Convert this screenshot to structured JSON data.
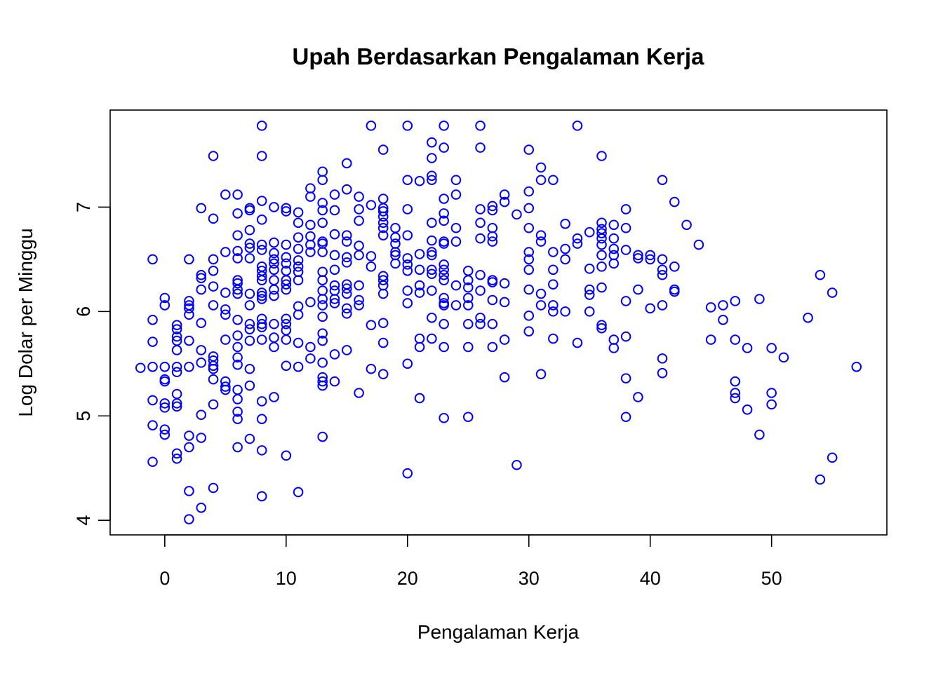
{
  "chart_data": {
    "type": "scatter",
    "title": "Upah Berdasarkan Pengalaman Kerja",
    "xlabel": "Pengalaman Kerja",
    "ylabel": "Log Dolar per Minggu",
    "xlim": [
      -4.5,
      59.5
    ],
    "ylim": [
      3.86,
      7.93
    ],
    "x_ticks": [
      0,
      10,
      20,
      30,
      40,
      50
    ],
    "y_ticks": [
      4,
      5,
      6,
      7
    ],
    "grid": false,
    "marker": "open-circle",
    "point_color": "#0000ff",
    "points": [
      [
        -2,
        5.46
      ],
      [
        -1,
        6.5
      ],
      [
        -1,
        5.92
      ],
      [
        -1,
        5.71
      ],
      [
        -1,
        5.47
      ],
      [
        -1,
        5.15
      ],
      [
        -1,
        4.91
      ],
      [
        -1,
        4.56
      ],
      [
        0,
        6.13
      ],
      [
        0,
        6.06
      ],
      [
        0,
        5.47
      ],
      [
        0,
        5.35
      ],
      [
        0,
        5.33
      ],
      [
        0,
        5.12
      ],
      [
        0,
        5.08
      ],
      [
        0,
        4.87
      ],
      [
        0,
        4.82
      ],
      [
        1,
        5.87
      ],
      [
        1,
        5.83
      ],
      [
        1,
        5.76
      ],
      [
        1,
        5.72
      ],
      [
        1,
        5.63
      ],
      [
        1,
        5.47
      ],
      [
        1,
        5.42
      ],
      [
        1,
        5.21
      ],
      [
        1,
        5.12
      ],
      [
        1,
        5.09
      ],
      [
        1,
        4.64
      ],
      [
        1,
        4.59
      ],
      [
        2,
        6.5
      ],
      [
        2,
        6.1
      ],
      [
        2,
        6.06
      ],
      [
        2,
        6.03
      ],
      [
        2,
        5.97
      ],
      [
        2,
        5.72
      ],
      [
        2,
        5.47
      ],
      [
        2,
        4.81
      ],
      [
        2,
        4.7
      ],
      [
        2,
        4.28
      ],
      [
        2,
        4.01
      ],
      [
        3,
        6.99
      ],
      [
        3,
        6.35
      ],
      [
        3,
        6.32
      ],
      [
        3,
        6.21
      ],
      [
        3,
        5.89
      ],
      [
        3,
        5.63
      ],
      [
        3,
        5.51
      ],
      [
        3,
        5.01
      ],
      [
        3,
        4.79
      ],
      [
        3,
        4.12
      ],
      [
        4,
        7.49
      ],
      [
        4,
        6.89
      ],
      [
        4,
        6.5
      ],
      [
        4,
        6.39
      ],
      [
        4,
        6.24
      ],
      [
        4,
        6.06
      ],
      [
        4,
        5.57
      ],
      [
        4,
        5.53
      ],
      [
        4,
        5.48
      ],
      [
        4,
        5.45
      ],
      [
        4,
        5.35
      ],
      [
        4,
        5.11
      ],
      [
        4,
        4.31
      ],
      [
        5,
        7.12
      ],
      [
        5,
        6.57
      ],
      [
        5,
        6.18
      ],
      [
        5,
        6.02
      ],
      [
        5,
        5.97
      ],
      [
        5,
        5.73
      ],
      [
        5,
        5.33
      ],
      [
        5,
        5.28
      ],
      [
        5,
        5.25
      ],
      [
        6,
        7.12
      ],
      [
        6,
        6.94
      ],
      [
        6,
        6.73
      ],
      [
        6,
        6.58
      ],
      [
        6,
        6.51
      ],
      [
        6,
        6.3
      ],
      [
        6,
        6.27
      ],
      [
        6,
        6.21
      ],
      [
        6,
        6.17
      ],
      [
        6,
        5.92
      ],
      [
        6,
        5.77
      ],
      [
        6,
        5.66
      ],
      [
        6,
        5.56
      ],
      [
        6,
        5.49
      ],
      [
        6,
        5.25
      ],
      [
        6,
        5.16
      ],
      [
        6,
        5.04
      ],
      [
        6,
        4.97
      ],
      [
        6,
        4.7
      ],
      [
        7,
        6.99
      ],
      [
        7,
        6.97
      ],
      [
        7,
        6.78
      ],
      [
        7,
        6.65
      ],
      [
        7,
        6.61
      ],
      [
        7,
        6.51
      ],
      [
        7,
        6.17
      ],
      [
        7,
        6.06
      ],
      [
        7,
        5.88
      ],
      [
        7,
        5.83
      ],
      [
        7,
        5.72
      ],
      [
        7,
        5.45
      ],
      [
        7,
        5.29
      ],
      [
        7,
        4.78
      ],
      [
        8,
        7.78
      ],
      [
        8,
        7.49
      ],
      [
        8,
        7.06
      ],
      [
        8,
        6.88
      ],
      [
        8,
        6.64
      ],
      [
        8,
        6.59
      ],
      [
        8,
        6.43
      ],
      [
        8,
        6.39
      ],
      [
        8,
        6.34
      ],
      [
        8,
        6.3
      ],
      [
        8,
        6.18
      ],
      [
        8,
        6.15
      ],
      [
        8,
        6.12
      ],
      [
        8,
        5.93
      ],
      [
        8,
        5.88
      ],
      [
        8,
        5.85
      ],
      [
        8,
        5.73
      ],
      [
        8,
        5.14
      ],
      [
        8,
        4.97
      ],
      [
        8,
        4.67
      ],
      [
        8,
        4.23
      ],
      [
        9,
        7.0
      ],
      [
        9,
        6.66
      ],
      [
        9,
        6.56
      ],
      [
        9,
        6.5
      ],
      [
        9,
        6.46
      ],
      [
        9,
        6.4
      ],
      [
        9,
        6.3
      ],
      [
        9,
        6.21
      ],
      [
        9,
        6.15
      ],
      [
        9,
        5.88
      ],
      [
        9,
        5.75
      ],
      [
        9,
        5.66
      ],
      [
        9,
        5.18
      ],
      [
        10,
        6.99
      ],
      [
        10,
        6.96
      ],
      [
        10,
        6.64
      ],
      [
        10,
        6.52
      ],
      [
        10,
        6.46
      ],
      [
        10,
        6.39
      ],
      [
        10,
        6.3
      ],
      [
        10,
        6.26
      ],
      [
        10,
        6.21
      ],
      [
        10,
        5.93
      ],
      [
        10,
        5.88
      ],
      [
        10,
        5.82
      ],
      [
        10,
        5.73
      ],
      [
        10,
        5.48
      ],
      [
        10,
        4.62
      ],
      [
        11,
        6.95
      ],
      [
        11,
        6.85
      ],
      [
        11,
        6.71
      ],
      [
        11,
        6.6
      ],
      [
        11,
        6.49
      ],
      [
        11,
        6.43
      ],
      [
        11,
        6.38
      ],
      [
        11,
        6.3
      ],
      [
        11,
        6.05
      ],
      [
        11,
        5.97
      ],
      [
        11,
        5.7
      ],
      [
        11,
        5.47
      ],
      [
        11,
        4.27
      ],
      [
        12,
        7.18
      ],
      [
        12,
        7.1
      ],
      [
        12,
        6.83
      ],
      [
        12,
        6.72
      ],
      [
        12,
        6.64
      ],
      [
        12,
        6.57
      ],
      [
        12,
        6.09
      ],
      [
        12,
        5.66
      ],
      [
        12,
        5.55
      ],
      [
        13,
        7.34
      ],
      [
        13,
        7.26
      ],
      [
        13,
        7.04
      ],
      [
        13,
        6.97
      ],
      [
        13,
        6.85
      ],
      [
        13,
        6.67
      ],
      [
        13,
        6.65
      ],
      [
        13,
        6.57
      ],
      [
        13,
        6.38
      ],
      [
        13,
        6.3
      ],
      [
        13,
        6.2
      ],
      [
        13,
        6.12
      ],
      [
        13,
        6.06
      ],
      [
        13,
        5.95
      ],
      [
        13,
        5.79
      ],
      [
        13,
        5.72
      ],
      [
        13,
        5.51
      ],
      [
        13,
        5.37
      ],
      [
        13,
        5.33
      ],
      [
        13,
        5.29
      ],
      [
        13,
        4.8
      ],
      [
        14,
        7.12
      ],
      [
        14,
        6.97
      ],
      [
        14,
        6.74
      ],
      [
        14,
        6.54
      ],
      [
        14,
        6.4
      ],
      [
        14,
        6.25
      ],
      [
        14,
        6.2
      ],
      [
        14,
        6.12
      ],
      [
        14,
        6.08
      ],
      [
        14,
        5.59
      ],
      [
        14,
        5.33
      ],
      [
        15,
        7.42
      ],
      [
        15,
        7.17
      ],
      [
        15,
        6.73
      ],
      [
        15,
        6.67
      ],
      [
        15,
        6.52
      ],
      [
        15,
        6.47
      ],
      [
        15,
        6.26
      ],
      [
        15,
        6.22
      ],
      [
        15,
        6.17
      ],
      [
        15,
        6.03
      ],
      [
        15,
        5.98
      ],
      [
        15,
        5.63
      ],
      [
        16,
        7.1
      ],
      [
        16,
        6.98
      ],
      [
        16,
        6.87
      ],
      [
        16,
        6.63
      ],
      [
        16,
        6.54
      ],
      [
        16,
        6.25
      ],
      [
        16,
        6.11
      ],
      [
        16,
        6.06
      ],
      [
        16,
        5.22
      ],
      [
        17,
        7.78
      ],
      [
        17,
        7.02
      ],
      [
        17,
        6.53
      ],
      [
        17,
        6.43
      ],
      [
        17,
        5.87
      ],
      [
        17,
        5.45
      ],
      [
        18,
        7.55
      ],
      [
        18,
        7.08
      ],
      [
        18,
        6.99
      ],
      [
        18,
        6.96
      ],
      [
        18,
        6.91
      ],
      [
        18,
        6.85
      ],
      [
        18,
        6.8
      ],
      [
        18,
        6.73
      ],
      [
        18,
        6.34
      ],
      [
        18,
        6.3
      ],
      [
        18,
        6.25
      ],
      [
        18,
        6.17
      ],
      [
        18,
        5.89
      ],
      [
        18,
        5.7
      ],
      [
        18,
        5.4
      ],
      [
        19,
        6.8
      ],
      [
        19,
        6.71
      ],
      [
        19,
        6.65
      ],
      [
        19,
        6.57
      ],
      [
        19,
        6.54
      ],
      [
        19,
        6.46
      ],
      [
        20,
        7.78
      ],
      [
        20,
        7.26
      ],
      [
        20,
        6.98
      ],
      [
        20,
        6.73
      ],
      [
        20,
        6.51
      ],
      [
        20,
        6.45
      ],
      [
        20,
        6.39
      ],
      [
        20,
        6.2
      ],
      [
        20,
        6.08
      ],
      [
        20,
        5.5
      ],
      [
        20,
        4.45
      ],
      [
        21,
        7.25
      ],
      [
        21,
        6.55
      ],
      [
        21,
        6.4
      ],
      [
        21,
        6.25
      ],
      [
        21,
        6.18
      ],
      [
        21,
        5.74
      ],
      [
        21,
        5.66
      ],
      [
        21,
        5.17
      ],
      [
        22,
        7.62
      ],
      [
        22,
        7.47
      ],
      [
        22,
        7.3
      ],
      [
        22,
        7.26
      ],
      [
        22,
        6.85
      ],
      [
        22,
        6.68
      ],
      [
        22,
        6.57
      ],
      [
        22,
        6.54
      ],
      [
        22,
        6.4
      ],
      [
        22,
        6.36
      ],
      [
        22,
        6.2
      ],
      [
        22,
        5.94
      ],
      [
        22,
        5.74
      ],
      [
        23,
        7.78
      ],
      [
        23,
        7.57
      ],
      [
        23,
        7.08
      ],
      [
        23,
        6.94
      ],
      [
        23,
        6.87
      ],
      [
        23,
        6.67
      ],
      [
        23,
        6.65
      ],
      [
        23,
        6.45
      ],
      [
        23,
        6.4
      ],
      [
        23,
        6.35
      ],
      [
        23,
        6.3
      ],
      [
        23,
        6.13
      ],
      [
        23,
        6.08
      ],
      [
        23,
        6.06
      ],
      [
        23,
        5.88
      ],
      [
        23,
        5.66
      ],
      [
        23,
        4.98
      ],
      [
        24,
        7.26
      ],
      [
        24,
        7.12
      ],
      [
        24,
        6.8
      ],
      [
        24,
        6.67
      ],
      [
        24,
        6.25
      ],
      [
        24,
        6.06
      ],
      [
        25,
        6.39
      ],
      [
        25,
        6.3
      ],
      [
        25,
        6.23
      ],
      [
        25,
        6.13
      ],
      [
        25,
        6.06
      ],
      [
        25,
        5.88
      ],
      [
        25,
        5.66
      ],
      [
        25,
        4.99
      ],
      [
        26,
        7.78
      ],
      [
        26,
        7.57
      ],
      [
        26,
        6.98
      ],
      [
        26,
        6.85
      ],
      [
        26,
        6.7
      ],
      [
        26,
        6.35
      ],
      [
        26,
        6.2
      ],
      [
        26,
        5.94
      ],
      [
        26,
        5.88
      ],
      [
        27,
        7.01
      ],
      [
        27,
        6.97
      ],
      [
        27,
        6.8
      ],
      [
        27,
        6.72
      ],
      [
        27,
        6.67
      ],
      [
        27,
        6.3
      ],
      [
        27,
        6.28
      ],
      [
        27,
        6.11
      ],
      [
        27,
        5.88
      ],
      [
        27,
        5.66
      ],
      [
        28,
        7.12
      ],
      [
        28,
        7.05
      ],
      [
        28,
        6.27
      ],
      [
        28,
        6.09
      ],
      [
        28,
        5.73
      ],
      [
        28,
        5.37
      ],
      [
        29,
        6.93
      ],
      [
        29,
        4.53
      ],
      [
        30,
        7.55
      ],
      [
        30,
        7.15
      ],
      [
        30,
        6.99
      ],
      [
        30,
        6.8
      ],
      [
        30,
        6.57
      ],
      [
        30,
        6.5
      ],
      [
        30,
        6.4
      ],
      [
        30,
        6.21
      ],
      [
        30,
        5.96
      ],
      [
        30,
        5.81
      ],
      [
        31,
        7.38
      ],
      [
        31,
        7.26
      ],
      [
        31,
        6.73
      ],
      [
        31,
        6.67
      ],
      [
        31,
        6.17
      ],
      [
        31,
        6.06
      ],
      [
        31,
        5.4
      ],
      [
        32,
        7.26
      ],
      [
        32,
        6.57
      ],
      [
        32,
        6.4
      ],
      [
        32,
        6.26
      ],
      [
        32,
        6.06
      ],
      [
        32,
        6.0
      ],
      [
        32,
        5.74
      ],
      [
        33,
        6.84
      ],
      [
        33,
        6.6
      ],
      [
        33,
        6.5
      ],
      [
        33,
        6.0
      ],
      [
        34,
        7.78
      ],
      [
        34,
        6.7
      ],
      [
        34,
        6.65
      ],
      [
        34,
        5.7
      ],
      [
        35,
        6.76
      ],
      [
        35,
        6.41
      ],
      [
        35,
        6.21
      ],
      [
        35,
        6.16
      ],
      [
        35,
        6.0
      ],
      [
        36,
        7.49
      ],
      [
        36,
        6.85
      ],
      [
        36,
        6.79
      ],
      [
        36,
        6.75
      ],
      [
        36,
        6.7
      ],
      [
        36,
        6.64
      ],
      [
        36,
        6.54
      ],
      [
        36,
        6.43
      ],
      [
        36,
        6.23
      ],
      [
        36,
        5.87
      ],
      [
        36,
        5.84
      ],
      [
        37,
        6.83
      ],
      [
        37,
        6.7
      ],
      [
        37,
        6.6
      ],
      [
        37,
        6.54
      ],
      [
        37,
        6.46
      ],
      [
        37,
        5.73
      ],
      [
        37,
        5.65
      ],
      [
        38,
        6.98
      ],
      [
        38,
        6.8
      ],
      [
        38,
        6.59
      ],
      [
        38,
        6.1
      ],
      [
        38,
        5.76
      ],
      [
        38,
        5.36
      ],
      [
        38,
        4.99
      ],
      [
        39,
        6.54
      ],
      [
        39,
        6.51
      ],
      [
        39,
        6.21
      ],
      [
        39,
        5.18
      ],
      [
        40,
        6.54
      ],
      [
        40,
        6.5
      ],
      [
        40,
        6.03
      ],
      [
        41,
        7.26
      ],
      [
        41,
        6.5
      ],
      [
        41,
        6.4
      ],
      [
        41,
        6.35
      ],
      [
        41,
        6.06
      ],
      [
        41,
        5.55
      ],
      [
        41,
        5.41
      ],
      [
        42,
        7.05
      ],
      [
        42,
        6.43
      ],
      [
        42,
        6.21
      ],
      [
        42,
        6.19
      ],
      [
        43,
        6.83
      ],
      [
        44,
        6.64
      ],
      [
        45,
        6.04
      ],
      [
        45,
        5.73
      ],
      [
        46,
        6.06
      ],
      [
        46,
        5.92
      ],
      [
        47,
        6.1
      ],
      [
        47,
        5.73
      ],
      [
        47,
        5.33
      ],
      [
        47,
        5.22
      ],
      [
        47,
        5.17
      ],
      [
        48,
        5.65
      ],
      [
        48,
        5.06
      ],
      [
        49,
        6.12
      ],
      [
        49,
        4.82
      ],
      [
        50,
        5.65
      ],
      [
        50,
        5.22
      ],
      [
        50,
        5.11
      ],
      [
        51,
        5.56
      ],
      [
        53,
        5.94
      ],
      [
        54,
        6.35
      ],
      [
        54,
        4.39
      ],
      [
        55,
        6.18
      ],
      [
        55,
        4.6
      ],
      [
        57,
        5.47
      ]
    ]
  }
}
